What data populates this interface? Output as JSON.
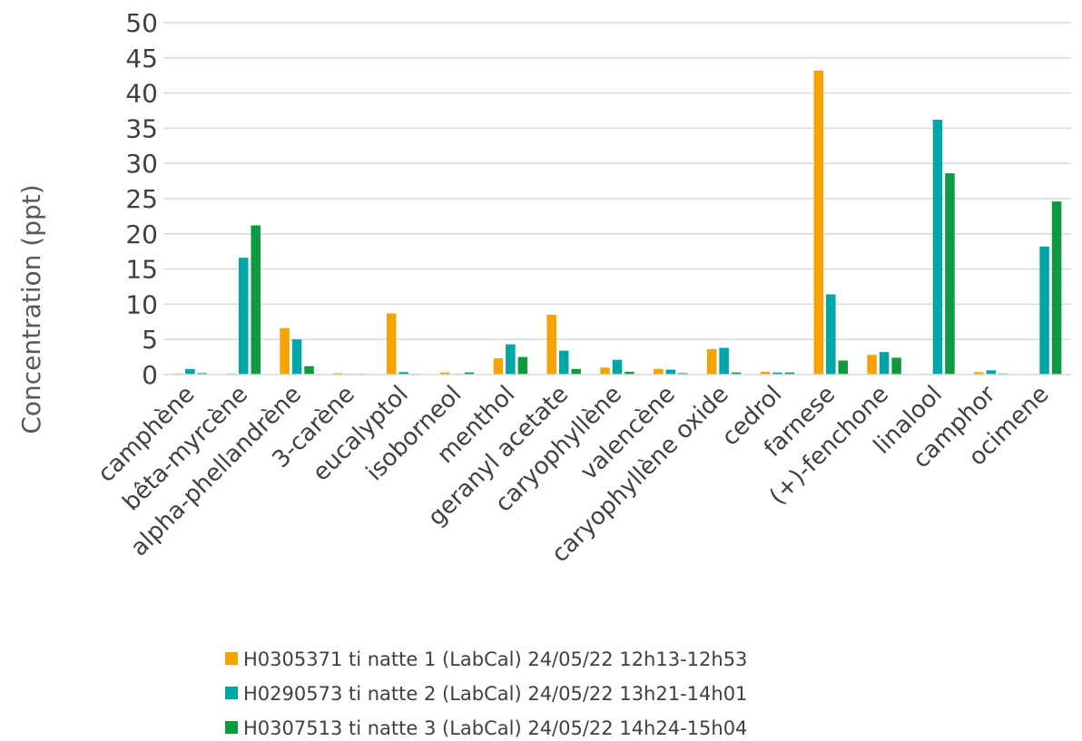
{
  "chart_data": {
    "type": "bar",
    "title": "",
    "xlabel": "",
    "ylabel": "Concentration (ppt)",
    "ylim": [
      0,
      50
    ],
    "yticks": [
      0,
      5,
      10,
      15,
      20,
      25,
      30,
      35,
      40,
      45,
      50
    ],
    "grid": true,
    "legend_position": "bottom",
    "categories": [
      "camphène",
      "bêta-myrcène",
      "alpha-phellandrène",
      "3-carène",
      "eucalyptol",
      "isoborneol",
      "menthol",
      "geranyl acetate",
      "caryophyllène",
      "valencène",
      "caryophyllène oxide",
      "cedrol",
      "farnese",
      "(+)-fenchone",
      "linalool",
      "camphor",
      "ocimene"
    ],
    "series": [
      {
        "name": "H0305371 ti natte 1 (LabCal) 24/05/22 12h13-12h53",
        "color": "#F5A300",
        "values": [
          0.15,
          0.15,
          6.6,
          0.2,
          8.7,
          0.3,
          2.3,
          8.5,
          1.0,
          0.8,
          3.6,
          0.4,
          43.2,
          2.8,
          0.1,
          0.35,
          0.1
        ]
      },
      {
        "name": "H0290573 ti natte 2 (LabCal) 24/05/22 13h21-14h01",
        "color": "#00A5A5",
        "values": [
          0.8,
          16.6,
          5.0,
          0.1,
          0.35,
          0.1,
          4.3,
          3.4,
          2.1,
          0.7,
          3.8,
          0.3,
          11.4,
          3.2,
          36.2,
          0.6,
          18.2
        ]
      },
      {
        "name": "H0307513 ti natte 3 (LabCal) 24/05/22 14h24-15h04",
        "color": "#109A3F",
        "values": [
          0.2,
          21.2,
          1.2,
          0.1,
          0.1,
          0.3,
          2.5,
          0.8,
          0.4,
          0.2,
          0.3,
          0.3,
          2.0,
          2.4,
          28.6,
          0.15,
          24.6
        ]
      }
    ]
  }
}
